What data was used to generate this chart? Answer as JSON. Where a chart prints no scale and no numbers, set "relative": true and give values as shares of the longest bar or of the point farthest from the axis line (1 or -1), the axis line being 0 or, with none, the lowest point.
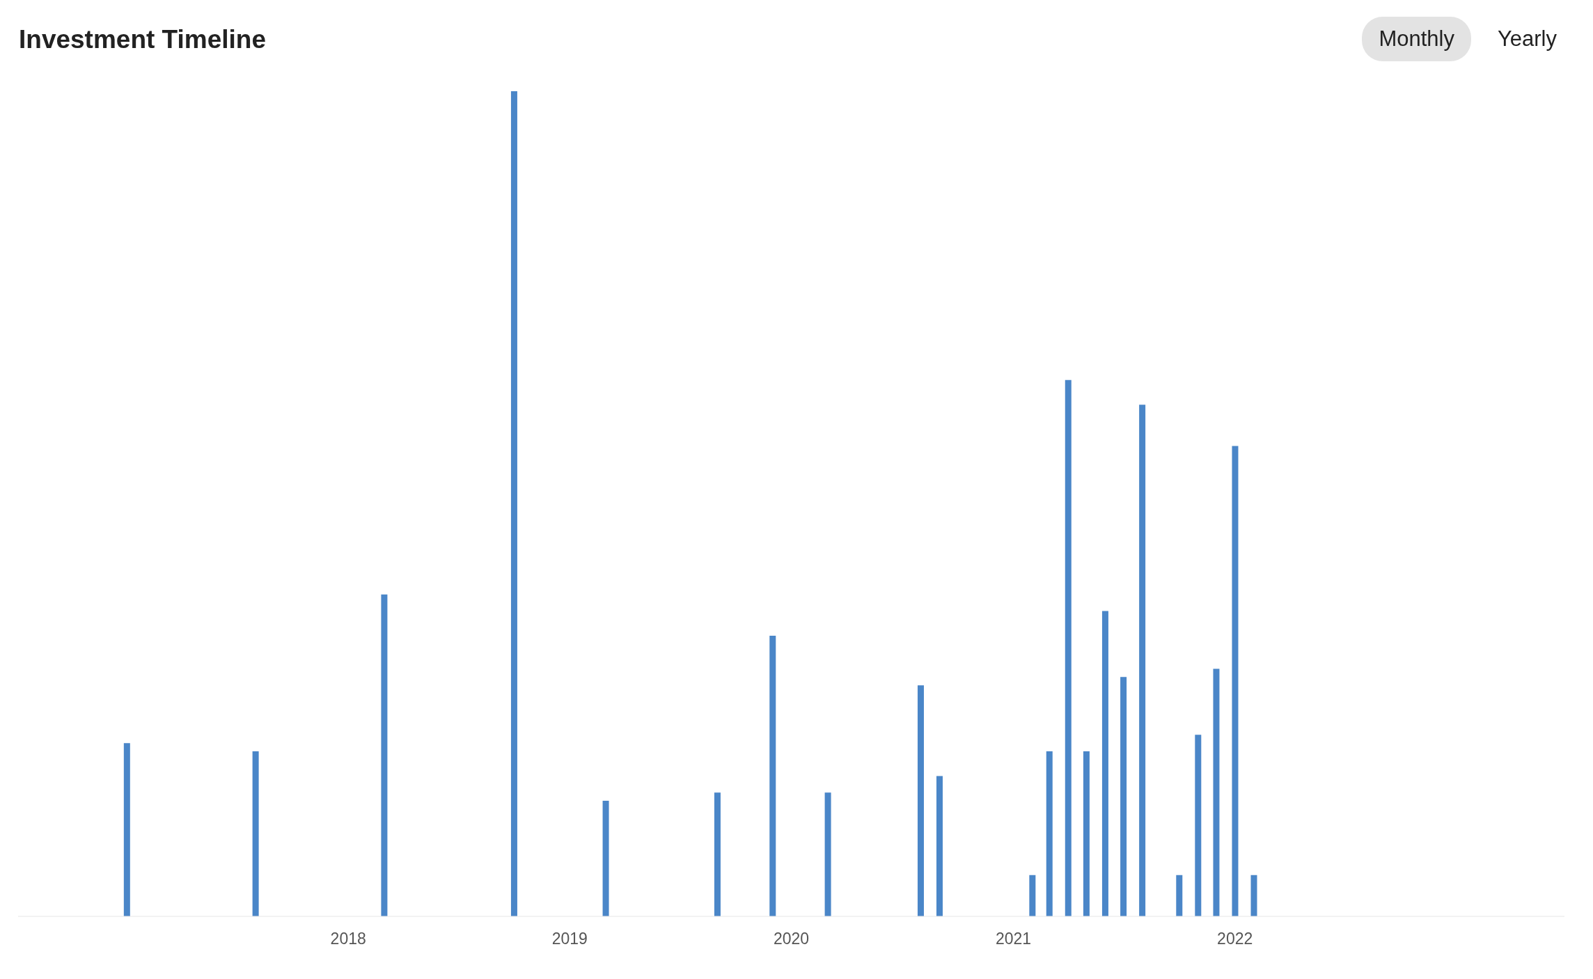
{
  "chart_data": {
    "type": "bar",
    "title": "Investment Timeline",
    "annotations": [
      "Monthly",
      "Yearly"
    ],
    "relative": true,
    "x": [
      "2017-01",
      "2017-08",
      "2018-03",
      "2018-10",
      "2019-03",
      "2019-09",
      "2019-12",
      "2020-03",
      "2020-08",
      "2020-09",
      "2021-02",
      "2021-03",
      "2021-04",
      "2021-05",
      "2021-06",
      "2021-07",
      "2021-08",
      "2021-10",
      "2021-11",
      "2021-12",
      "2022-01",
      "2022-02"
    ],
    "values": [
      0.21,
      0.2,
      0.39,
      1,
      0.14,
      0.15,
      0.34,
      0.15,
      0.28,
      0.17,
      0.05,
      0.2,
      0.65,
      0.2,
      0.37,
      0.29,
      0.62,
      0.05,
      0.22,
      0.3,
      0.57,
      0.05
    ],
    "color": "#4a86c8",
    "xlim": [
      "2016-07-06",
      "2023-06-28"
    ],
    "xticks": [
      {
        "value": "2018",
        "label": "2018"
      },
      {
        "value": "2019",
        "label": "2019"
      },
      {
        "value": "2020",
        "label": "2020"
      },
      {
        "value": "2021",
        "label": "2021"
      },
      {
        "value": "2022",
        "label": "2022"
      }
    ],
    "grid": false,
    "legend": false
  }
}
